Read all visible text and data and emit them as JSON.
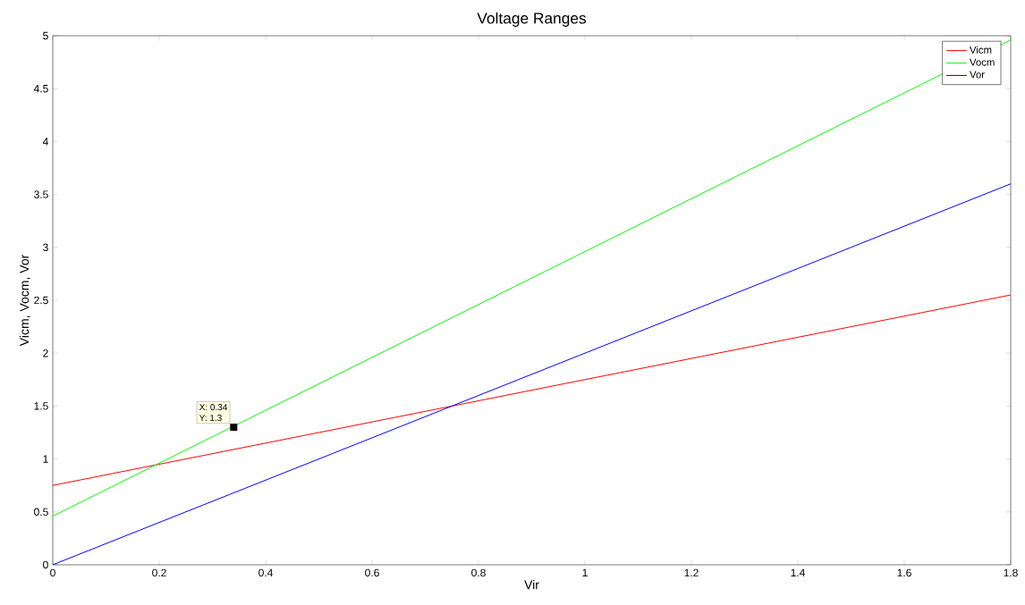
{
  "chart_data": {
    "type": "line",
    "title": "Voltage Ranges",
    "xlabel": "Vir",
    "ylabel": "Vicm, Vocm, Vor",
    "x": [
      0,
      0.2,
      0.4,
      0.6,
      0.8,
      1.0,
      1.2,
      1.4,
      1.6,
      1.8
    ],
    "series": [
      {
        "name": "Vicm",
        "color": "#ff0000",
        "values": [
          0.75,
          0.95,
          1.15,
          1.35,
          1.55,
          1.75,
          1.95,
          2.15,
          2.35,
          2.55
        ]
      },
      {
        "name": "Vocm",
        "color": "#00ff00",
        "values": [
          0.46,
          0.96,
          1.46,
          1.96,
          2.46,
          2.96,
          3.46,
          3.96,
          4.46,
          4.96
        ]
      },
      {
        "name": "Vor",
        "color": "#0000ff",
        "values": [
          0,
          0.4,
          0.8,
          1.2,
          1.6,
          2.0,
          2.4,
          2.8,
          3.2,
          3.6
        ]
      }
    ],
    "xlim": [
      0,
      1.8
    ],
    "ylim": [
      0,
      5
    ],
    "xticks": [
      0,
      0.2,
      0.4,
      0.6,
      0.8,
      1,
      1.2,
      1.4,
      1.6,
      1.8
    ],
    "yticks": [
      0,
      0.5,
      1,
      1.5,
      2,
      2.5,
      3,
      3.5,
      4,
      4.5,
      5
    ],
    "annotations": [
      {
        "text": "X: 0.34",
        "x": 0.34,
        "y": 1.3
      },
      {
        "text": "Y: 1.3",
        "x": 0.34,
        "y": 1.3
      }
    ],
    "legend": "top right",
    "grid": false,
    "marker": "none",
    "line_style": "solid"
  }
}
